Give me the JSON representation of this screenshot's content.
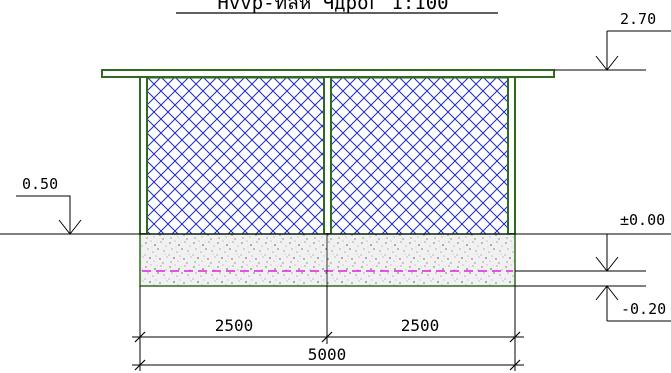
{
  "title": "Hvvp-ทลห Чдрог 1:100",
  "elevations": {
    "roof_top": "2.70",
    "left_marker": "0.50",
    "ground": "±0.00",
    "foundation_bottom": "-0.20"
  },
  "dimensions": {
    "left_span": "2500",
    "right_span": "2500",
    "total_span": "5000"
  },
  "colors": {
    "structure_green": "#2f6b1f",
    "hatch_blue": "#1c2cc8",
    "centerline_magenta": "#e020e0",
    "line_black": "#000000"
  }
}
